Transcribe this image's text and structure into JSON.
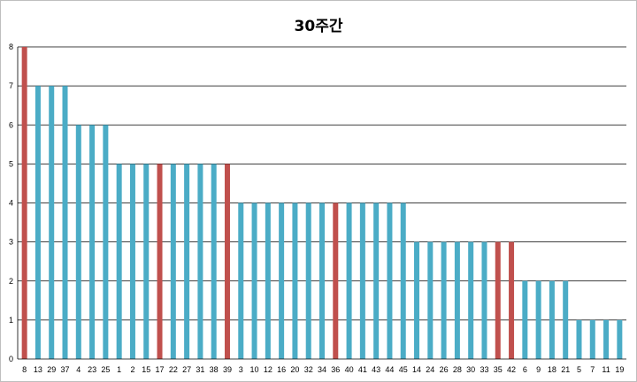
{
  "chart_data": {
    "type": "bar",
    "title": "30주간",
    "xlabel": "",
    "ylabel": "",
    "ylim": [
      0,
      8
    ],
    "yticks": [
      0,
      1,
      2,
      3,
      4,
      5,
      6,
      7,
      8
    ],
    "grid": true,
    "legend": "none",
    "categories": [
      "8",
      "13",
      "29",
      "37",
      "4",
      "23",
      "25",
      "1",
      "2",
      "15",
      "17",
      "22",
      "27",
      "31",
      "38",
      "39",
      "3",
      "10",
      "12",
      "16",
      "20",
      "32",
      "34",
      "36",
      "40",
      "41",
      "43",
      "44",
      "45",
      "14",
      "24",
      "26",
      "28",
      "30",
      "33",
      "35",
      "42",
      "6",
      "9",
      "18",
      "21",
      "5",
      "7",
      "11",
      "19"
    ],
    "values": [
      8,
      7,
      7,
      7,
      6,
      6,
      6,
      5,
      5,
      5,
      5,
      5,
      5,
      5,
      5,
      5,
      4,
      4,
      4,
      4,
      4,
      4,
      4,
      4,
      4,
      4,
      4,
      4,
      4,
      3,
      3,
      3,
      3,
      3,
      3,
      3,
      3,
      2,
      2,
      2,
      2,
      1,
      1,
      1,
      1
    ],
    "highlighted": [
      "8",
      "17",
      "39",
      "36",
      "35",
      "42"
    ],
    "colors": {
      "bar": "#4bacc6",
      "highlight": "#c0504d",
      "grid": "#000000"
    }
  }
}
